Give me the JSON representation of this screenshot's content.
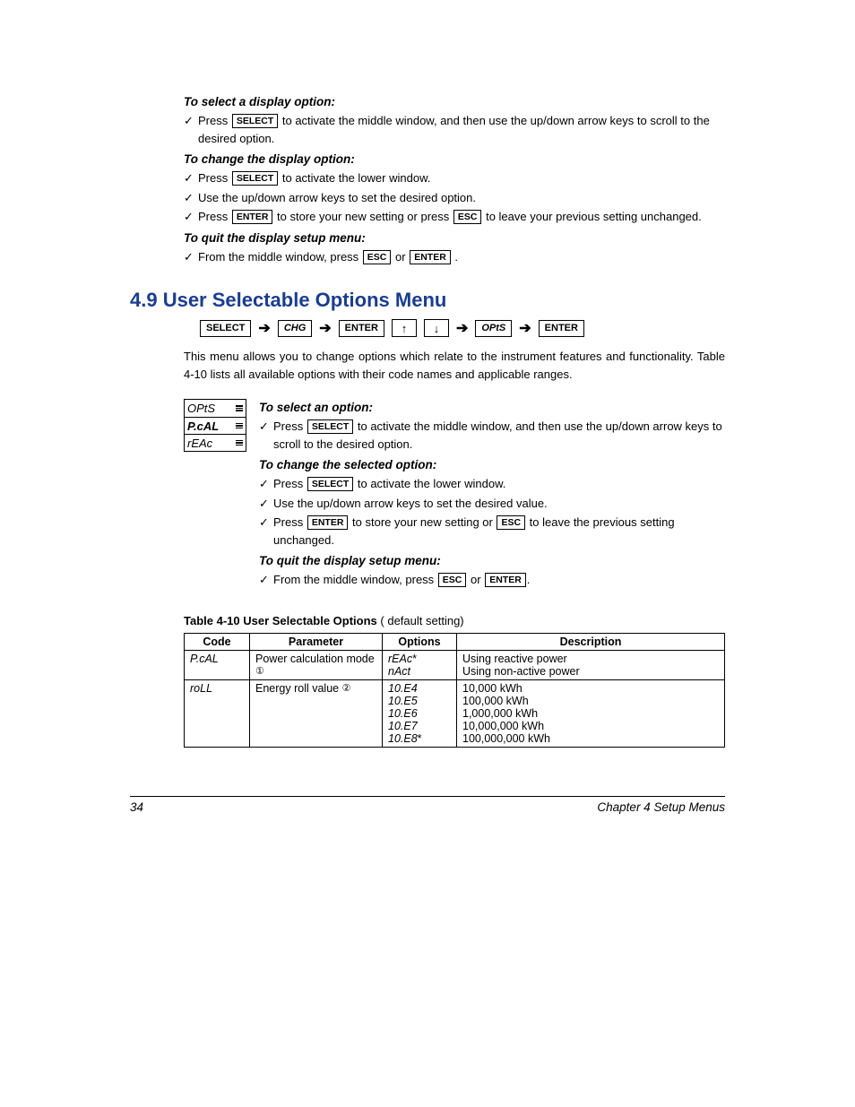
{
  "headings": {
    "h1": "To select a display option:",
    "h2": "To change the display option:",
    "h3": "To quit the display setup menu:",
    "h4": "To select an option:",
    "h5": "To change the selected option:",
    "h6": "To quit the display setup menu:"
  },
  "keys": {
    "select": "SELECT",
    "enter": "ENTER",
    "esc": "ESC",
    "chg": "CHG",
    "opts": "OPtS",
    "up": "↑",
    "down": "↓",
    "arrow": "➔"
  },
  "lines": {
    "l1a": "Press ",
    "l1b": " to activate the middle window, and then use the up/down arrow keys to scroll to the desired option.",
    "l2a": "Press ",
    "l2b": " to activate the lower window.",
    "l3": "Use the up/down arrow keys to set the desired option.",
    "l4a": "Press ",
    "l4b": " to store your new setting or press ",
    "l4c": " to leave your previous setting unchanged.",
    "l5a": "From the middle window, press ",
    "l5b": " or ",
    "l5c": " .",
    "para": "This menu allows you to change options which relate to the instrument features and functionality. Table 4-10 lists all available options with their code names and applicable ranges.",
    "l6a": "Press ",
    "l6b": "  to activate the middle window, and then use the up/down arrow keys to scroll to the desired option.",
    "l7a": "Press ",
    "l7b": "  to activate the lower window.",
    "l8": "Use the up/down arrow keys to set the desired value.",
    "l9a": "Press ",
    "l9b": " to store your new setting or ",
    "l9c": " to leave the previous setting unchanged.",
    "l10a": "From the middle window, press ",
    "l10b": " or ",
    "l10c": "."
  },
  "section_title": "4.9 User Selectable Options Menu",
  "display": {
    "r1": "OPtS",
    "r2": "P.cAL",
    "r3": "rEAc"
  },
  "table": {
    "caption_bold": "Table 4-10  User Selectable Options",
    "caption_rest": "  (   default setting)",
    "headers": {
      "code": "Code",
      "param": "Parameter",
      "opts": "Options",
      "desc": "Description"
    },
    "rows": [
      {
        "code": "P.cAL",
        "param": "Power calculation mode ",
        "circ": "①",
        "options": [
          "rEAc*",
          "nAct"
        ],
        "desc": [
          "Using reactive power",
          "Using non-active power"
        ]
      },
      {
        "code": "roLL",
        "param": "Energy roll value ",
        "circ": "②",
        "options": [
          "10.E4",
          "10.E5",
          "10.E6",
          "10.E7",
          "10.E8*"
        ],
        "desc": [
          "10,000 kWh",
          "100,000 kWh",
          "1,000,000 kWh",
          "10,000,000 kWh",
          "100,000,000 kWh"
        ]
      }
    ]
  },
  "footer": {
    "page": "34",
    "chapter": "Chapter 4  Setup Menus"
  }
}
